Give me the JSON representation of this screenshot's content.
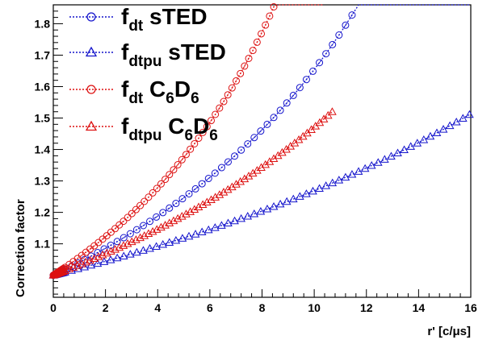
{
  "chart_data": {
    "type": "scatter",
    "xlabel": "r' [c/μs]",
    "ylabel": "Correction factor",
    "xlim": [
      0,
      16
    ],
    "ylim": [
      0.93,
      1.86
    ],
    "x_ticks": [
      "0",
      "2",
      "4",
      "6",
      "8",
      "10",
      "12",
      "14",
      "16"
    ],
    "y_ticks": [
      "1.1",
      "1.2",
      "1.3",
      "1.4",
      "1.5",
      "1.6",
      "1.7",
      "1.8"
    ],
    "grid": false,
    "legend_position": "top-left",
    "series": [
      {
        "name_main": "f",
        "name_sub": "dt",
        "name_rest": " sTED",
        "color": "#1414cc",
        "marker": "circle",
        "k": 0.03955,
        "x_max": 16.0,
        "step": 0.25
      },
      {
        "name_main": "f",
        "name_sub": "dtpu",
        "name_rest": " sTED",
        "color": "#1414cc",
        "marker": "triangle",
        "k": 0.0212,
        "x_max": 16.0,
        "step": 0.25
      },
      {
        "name_main": "f",
        "name_sub": "dt",
        "name_rest": " C6D6",
        "color": "#dd1111",
        "marker": "circle",
        "k": 0.0545,
        "x_max": 10.4,
        "step": 0.16
      },
      {
        "name_main": "f",
        "name_sub": "dtpu",
        "name_rest": " C6D6",
        "color": "#dd1111",
        "marker": "triangle",
        "k": 0.032,
        "x_max": 10.8,
        "step": 0.16
      }
    ]
  }
}
